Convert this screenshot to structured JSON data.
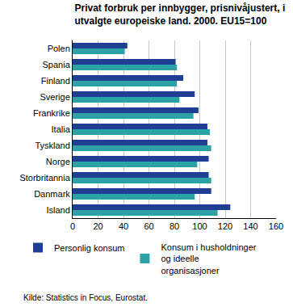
{
  "chart_data": {
    "type": "bar",
    "orientation": "horizontal",
    "title": "Privat forbruk per innbygger, prisnivåjustert, i utvalgte europeiske land. 2000. EU15=100",
    "source": "Kilde: Statistics in Focus, Eurostat.",
    "categories": [
      "Polen",
      "Spania",
      "Finland",
      "Sverige",
      "Frankrike",
      "Italia",
      "Tyskland",
      "Norge",
      "Storbritannia",
      "Danmark",
      "Island"
    ],
    "series": [
      {
        "name": "Personlig konsum",
        "color": "#1f3f95",
        "values": [
          43,
          81,
          87,
          96,
          99,
          106,
          106,
          107,
          107,
          109,
          124
        ]
      },
      {
        "name": "Konsum i husholdninger og ideelle organisasjoner",
        "color": "#2ba3a6",
        "values": [
          41,
          82,
          82,
          84,
          95,
          108,
          109,
          98,
          109,
          96,
          114
        ]
      }
    ],
    "xlim": [
      0,
      160
    ],
    "xticks": [
      0,
      20,
      40,
      60,
      80,
      100,
      120,
      140,
      160
    ],
    "grid": true,
    "legend": "bottom"
  }
}
